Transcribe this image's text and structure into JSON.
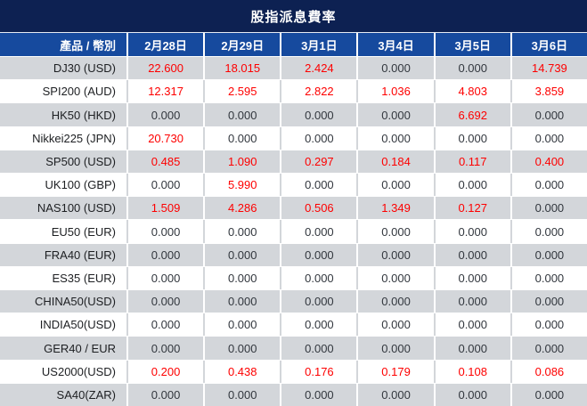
{
  "title": "股指派息費率",
  "colors": {
    "title_bar_navy": "#0d2152",
    "header_blue": "#164a9e",
    "row_gray": "#d3d6da",
    "row_white": "#ffffff",
    "value_red": "#fe0000",
    "value_dark": "#32373e",
    "header_text": "#ffffff"
  },
  "chart_data": {
    "type": "table",
    "title": "股指派息費率",
    "product_header": "產品 / 幣別",
    "date_columns": [
      "2月28日",
      "2月29日",
      "3月1日",
      "3月4日",
      "3月5日",
      "3月6日"
    ],
    "value_color_rule": "non-zero values rendered red, zero values rendered dark gray",
    "rows": [
      {
        "product": "DJ30 (USD)",
        "values": [
          "22.600",
          "18.015",
          "2.424",
          "0.000",
          "0.000",
          "14.739"
        ]
      },
      {
        "product": "SPI200 (AUD)",
        "values": [
          "12.317",
          "2.595",
          "2.822",
          "1.036",
          "4.803",
          "3.859"
        ]
      },
      {
        "product": "HK50 (HKD)",
        "values": [
          "0.000",
          "0.000",
          "0.000",
          "0.000",
          "6.692",
          "0.000"
        ]
      },
      {
        "product": "Nikkei225 (JPN)",
        "values": [
          "20.730",
          "0.000",
          "0.000",
          "0.000",
          "0.000",
          "0.000"
        ]
      },
      {
        "product": "SP500 (USD)",
        "values": [
          "0.485",
          "1.090",
          "0.297",
          "0.184",
          "0.117",
          "0.400"
        ]
      },
      {
        "product": "UK100 (GBP)",
        "values": [
          "0.000",
          "5.990",
          "0.000",
          "0.000",
          "0.000",
          "0.000"
        ]
      },
      {
        "product": "NAS100 (USD)",
        "values": [
          "1.509",
          "4.286",
          "0.506",
          "1.349",
          "0.127",
          "0.000"
        ]
      },
      {
        "product": "EU50 (EUR)",
        "values": [
          "0.000",
          "0.000",
          "0.000",
          "0.000",
          "0.000",
          "0.000"
        ]
      },
      {
        "product": "FRA40 (EUR)",
        "values": [
          "0.000",
          "0.000",
          "0.000",
          "0.000",
          "0.000",
          "0.000"
        ]
      },
      {
        "product": "ES35 (EUR)",
        "values": [
          "0.000",
          "0.000",
          "0.000",
          "0.000",
          "0.000",
          "0.000"
        ]
      },
      {
        "product": "CHINA50(USD)",
        "values": [
          "0.000",
          "0.000",
          "0.000",
          "0.000",
          "0.000",
          "0.000"
        ]
      },
      {
        "product": "INDIA50(USD)",
        "values": [
          "0.000",
          "0.000",
          "0.000",
          "0.000",
          "0.000",
          "0.000"
        ]
      },
      {
        "product": "GER40 / EUR",
        "values": [
          "0.000",
          "0.000",
          "0.000",
          "0.000",
          "0.000",
          "0.000"
        ]
      },
      {
        "product": "US2000(USD)",
        "values": [
          "0.200",
          "0.438",
          "0.176",
          "0.179",
          "0.108",
          "0.086"
        ]
      },
      {
        "product": "SA40(ZAR)",
        "values": [
          "0.000",
          "0.000",
          "0.000",
          "0.000",
          "0.000",
          "0.000"
        ]
      }
    ]
  }
}
